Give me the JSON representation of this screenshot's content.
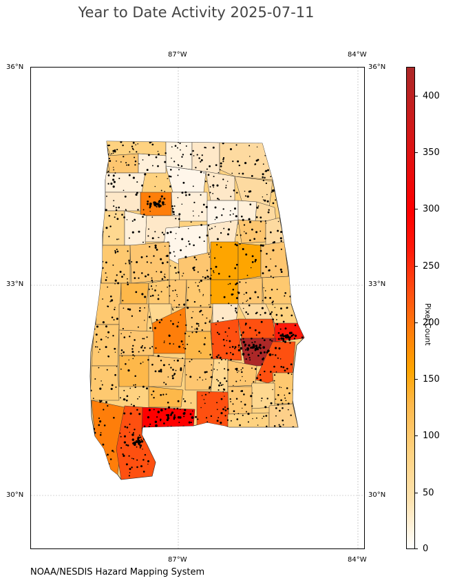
{
  "title": "Year to Date Activity 2025-07-11",
  "credit": "NOAA/NESDIS Hazard Mapping System",
  "map": {
    "top_labels": [
      "87°W",
      "84°W"
    ],
    "bottom_labels": [
      "87°W",
      "84°W"
    ],
    "left_labels": [
      "36°N",
      "33°N",
      "30°N"
    ],
    "right_labels": [
      "36°N",
      "33°N",
      "30°N"
    ]
  },
  "colorbar": {
    "title": "Pixel Count",
    "ticks": [
      "400",
      "350",
      "300",
      "250",
      "200",
      "150",
      "100",
      "50",
      "0"
    ],
    "range": [
      0,
      425
    ]
  },
  "colors": {
    "scale": [
      "#ffffff",
      "#fde3b0",
      "#fed280",
      "#fdb84a",
      "#fea500",
      "#fe7e0a",
      "#fe5010",
      "#fe1a0a",
      "#fe0000",
      "#ac2828"
    ],
    "county_border": "#333333",
    "points": "#000000",
    "grid": "#aaaaaa"
  }
}
